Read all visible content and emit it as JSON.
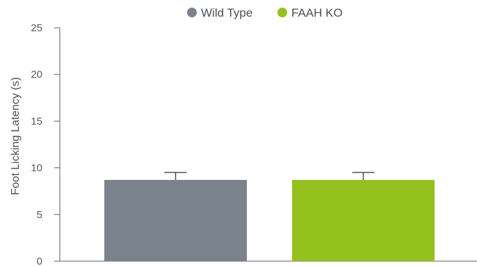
{
  "chart_data": {
    "type": "bar",
    "categories": [
      "",
      ""
    ],
    "series": [
      {
        "name": "Wild Type",
        "value": 8.7,
        "error": 0.8,
        "color": "#7a828b"
      },
      {
        "name": "FAAH KO",
        "value": 8.7,
        "error": 0.8,
        "color": "#95c11f"
      }
    ],
    "title": "",
    "xlabel": "",
    "ylabel": "Foot Licking Latency (s)",
    "ylim": [
      0,
      25
    ],
    "yticks": [
      "0",
      "5",
      "10",
      "15",
      "20",
      "25"
    ],
    "legend_position": "top",
    "grid": false
  }
}
